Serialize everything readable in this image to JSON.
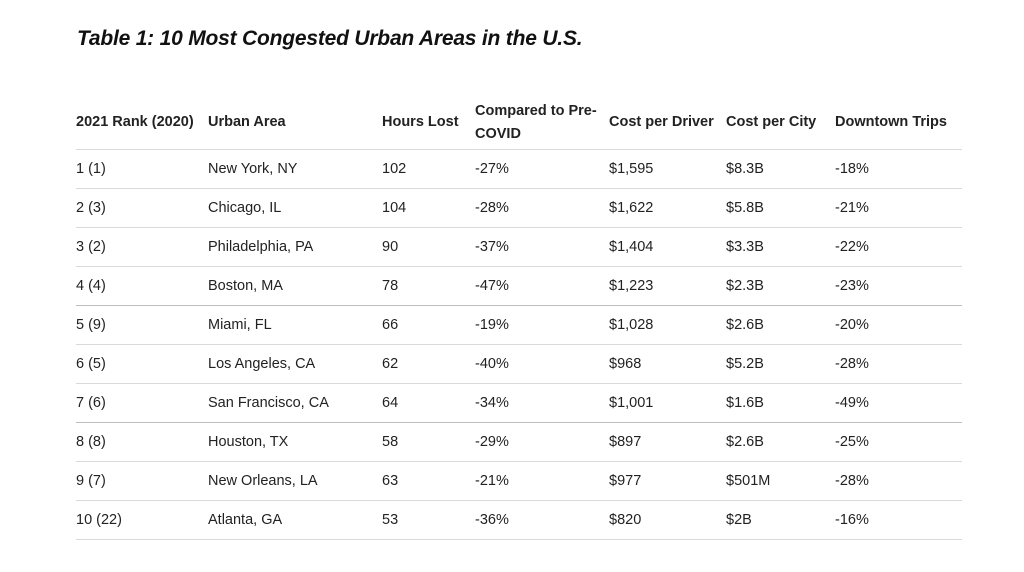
{
  "title": "Table 1: 10 Most Congested Urban Areas in the U.S.",
  "table": {
    "headers": {
      "rank": "2021 Rank (2020)",
      "area": "Urban Area",
      "hours": "Hours Lost",
      "compared_line1": "Compared to Pre-",
      "compared_line2": "COVID",
      "driver": "Cost per Driver",
      "city": "Cost per City",
      "trips": "Downtown Trips"
    },
    "rows": [
      {
        "rank": "1 (1)",
        "area": "New York, NY",
        "hours": "102",
        "compared": "-27%",
        "driver": "$1,595",
        "city": "$8.3B",
        "trips": "-18%"
      },
      {
        "rank": "2 (3)",
        "area": "Chicago, IL",
        "hours": "104",
        "compared": "-28%",
        "driver": "$1,622",
        "city": "$5.8B",
        "trips": "-21%"
      },
      {
        "rank": "3 (2)",
        "area": "Philadelphia, PA",
        "hours": "90",
        "compared": "-37%",
        "driver": "$1,404",
        "city": "$3.3B",
        "trips": "-22%"
      },
      {
        "rank": "4 (4)",
        "area": "Boston, MA",
        "hours": "78",
        "compared": "-47%",
        "driver": "$1,223",
        "city": "$2.3B",
        "trips": "-23%"
      },
      {
        "rank": "5 (9)",
        "area": "Miami, FL",
        "hours": "66",
        "compared": "-19%",
        "driver": "$1,028",
        "city": "$2.6B",
        "trips": "-20%"
      },
      {
        "rank": "6 (5)",
        "area": "Los Angeles, CA",
        "hours": "62",
        "compared": "-40%",
        "driver": "$968",
        "city": "$5.2B",
        "trips": "-28%"
      },
      {
        "rank": "7 (6)",
        "area": "San Francisco, CA",
        "hours": "64",
        "compared": "-34%",
        "driver": "$1,001",
        "city": "$1.6B",
        "trips": "-49%"
      },
      {
        "rank": "8 (8)",
        "area": "Houston, TX",
        "hours": "58",
        "compared": "-29%",
        "driver": "$897",
        "city": "$2.6B",
        "trips": "-25%"
      },
      {
        "rank": "9 (7)",
        "area": "New Orleans, LA",
        "hours": "63",
        "compared": "-21%",
        "driver": "$977",
        "city": "$501M",
        "trips": "-28%"
      },
      {
        "rank": "10 (22)",
        "area": "Atlanta, GA",
        "hours": "53",
        "compared": "-36%",
        "driver": "$820",
        "city": "$2B",
        "trips": "-16%"
      }
    ]
  }
}
